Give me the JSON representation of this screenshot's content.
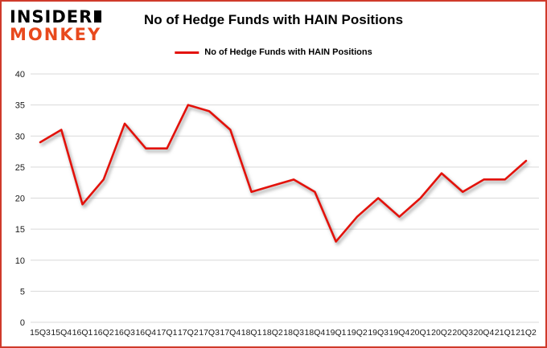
{
  "brand": {
    "line1": "INSIDER",
    "line2": "MONKEY"
  },
  "title": "No of Hedge Funds with HAIN Positions",
  "legend": {
    "label": "No of Hedge Funds with HAIN Positions"
  },
  "colors": {
    "line": "#e3120b",
    "border": "#cf3a2b",
    "brand_red": "#e8491d",
    "gridline": "#d9d9d9",
    "axis_text": "#1a1a1a"
  },
  "chart_data": {
    "type": "line",
    "title": "No of Hedge Funds with HAIN Positions",
    "xlabel": "",
    "ylabel": "",
    "ylim": [
      0,
      40
    ],
    "ytick_step": 5,
    "grid": true,
    "legend_position": "top",
    "categories": [
      "15Q3",
      "15Q4",
      "16Q1",
      "16Q2",
      "16Q3",
      "16Q4",
      "17Q1",
      "17Q2",
      "17Q3",
      "17Q4",
      "18Q1",
      "18Q2",
      "18Q3",
      "18Q4",
      "19Q1",
      "19Q2",
      "19Q3",
      "19Q4",
      "20Q1",
      "20Q2",
      "20Q3",
      "20Q4",
      "21Q1",
      "21Q2"
    ],
    "series": [
      {
        "name": "No of Hedge Funds with HAIN Positions",
        "values": [
          29,
          31,
          19,
          23,
          32,
          28,
          28,
          35,
          34,
          31,
          21,
          22,
          23,
          21,
          13,
          17,
          20,
          17,
          20,
          24,
          21,
          23,
          23,
          26
        ]
      }
    ]
  }
}
